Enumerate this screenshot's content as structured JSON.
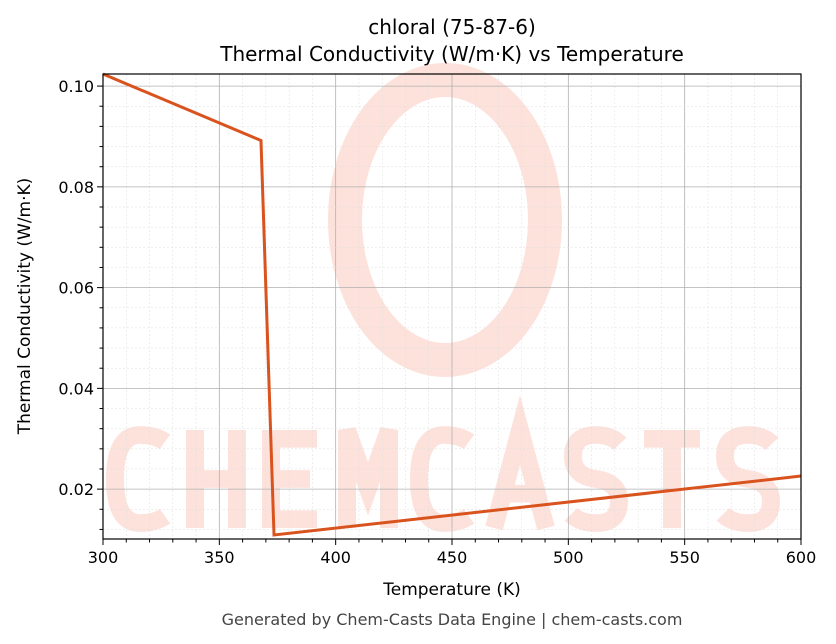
{
  "chart_data": {
    "type": "line",
    "title": "chloral (75-87-6)",
    "subtitle": "Thermal Conductivity (W/m·K) vs Temperature",
    "xlabel": "Temperature (K)",
    "ylabel": "Thermal Conductivity (W/m·K)",
    "xlim": [
      300,
      600
    ],
    "ylim": [
      0.0101,
      0.1024
    ],
    "xticks": [
      300,
      350,
      400,
      450,
      500,
      550,
      600
    ],
    "yticks": [
      0.02,
      0.04,
      0.06,
      0.08,
      0.1
    ],
    "ytick_labels": [
      "0.02",
      "0.04",
      "0.06",
      "0.08",
      "0.10"
    ],
    "grid": true,
    "series": [
      {
        "name": "Thermal Conductivity",
        "color": "#d9531e",
        "x": [
          300,
          367.9,
          373.5,
          600
        ],
        "y": [
          0.1024,
          0.0892,
          0.0109,
          0.0226
        ]
      }
    ]
  },
  "watermark": "CHEMCASTS",
  "footer": "Generated by Chem-Casts Data Engine | chem-casts.com"
}
